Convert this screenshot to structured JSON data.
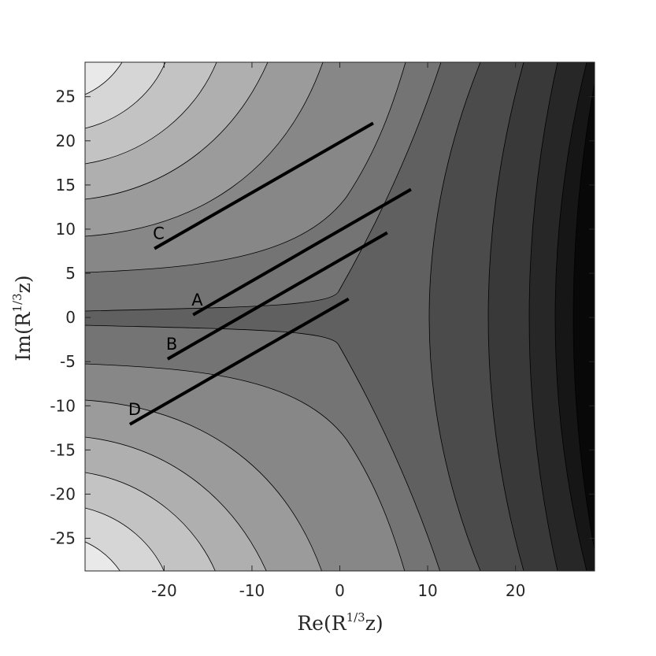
{
  "chart_data": {
    "type": "line",
    "xlabel": [
      "Re(R",
      "1/3",
      "z)"
    ],
    "ylabel": [
      "Im(R",
      "1/3",
      "z)"
    ],
    "xlim": [
      -29,
      29
    ],
    "ylim": [
      -28.7,
      28.9
    ],
    "xticks": [
      -20,
      -10,
      0,
      10,
      20
    ],
    "yticks": [
      -25,
      -20,
      -15,
      -10,
      -5,
      0,
      5,
      10,
      15,
      20,
      25
    ],
    "series": [
      {
        "name": "C",
        "color": "#000000",
        "x": [
          -21.1,
          3.8
        ],
        "values": [
          7.8,
          22.0
        ]
      },
      {
        "name": "A",
        "color": "#000000",
        "x": [
          -16.7,
          8.1
        ],
        "values": [
          0.3,
          14.5
        ]
      },
      {
        "name": "B",
        "color": "#000000",
        "x": [
          -19.6,
          5.4
        ],
        "values": [
          -4.7,
          9.6
        ]
      },
      {
        "name": "D",
        "color": "#000000",
        "x": [
          -23.9,
          1.0
        ],
        "values": [
          -12.1,
          2.1
        ]
      }
    ]
  }
}
